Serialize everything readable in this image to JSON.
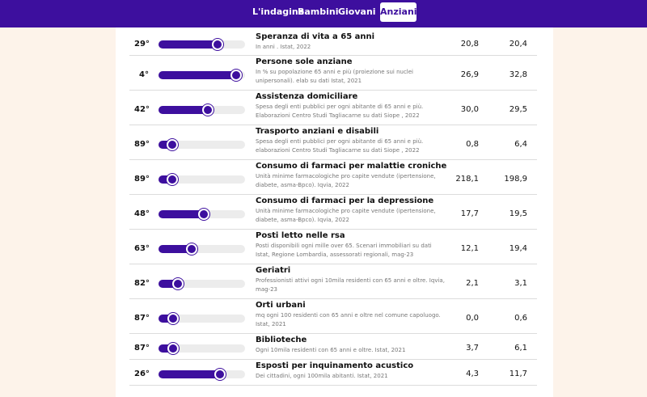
{
  "nav": {
    "tabs": [
      {
        "label": "L'indagine",
        "active": false
      },
      {
        "label": "Bambini",
        "active": false
      },
      {
        "label": "Giovani",
        "active": false
      },
      {
        "label": "Anziani",
        "active": true
      }
    ]
  },
  "colors": {
    "accent": "#3d0f9e",
    "background": "#fdf3ea",
    "track": "#ececec"
  },
  "rows": [
    {
      "rank": "29°",
      "fill": 0.69,
      "title": "Speranza di vita a 65 anni",
      "desc": "In anni . Istat, 2022",
      "v1": "20,8",
      "v2": "20,4"
    },
    {
      "rank": "4°",
      "fill": 0.91,
      "title": "Persone sole anziane",
      "desc": "In % su popolazione 65 anni e più (proiezione sui nuclei unipersonali). elab su dati Istat, 2021",
      "v1": "26,9",
      "v2": "32,8"
    },
    {
      "rank": "42°",
      "fill": 0.58,
      "title": "Assistenza domiciliare",
      "desc": "Spesa degli enti pubblici per ogni abitante di 65 anni e più. Elaborazioni Centro Studi Tagliacarne su dati Siope , 2022",
      "v1": "30,0",
      "v2": "29,5"
    },
    {
      "rank": "89°",
      "fill": 0.17,
      "title": "Trasporto anziani e disabili",
      "desc": "Spesa degli enti pubblici per ogni abitante di 65 anni e più. elaborazioni Centro Studi Tagliacarne su dati Siope , 2022",
      "v1": "0,8",
      "v2": "6,4"
    },
    {
      "rank": "89°",
      "fill": 0.17,
      "title": "Consumo di farmaci per malattie croniche",
      "desc": "Unità minime farmacologiche pro capite vendute (ipertensione, diabete, asma-Bpco). Iqvia, 2022",
      "v1": "218,1",
      "v2": "198,9"
    },
    {
      "rank": "48°",
      "fill": 0.53,
      "title": "Consumo di farmaci per la depressione",
      "desc": "Unità minime farmacologiche pro capite vendute (ipertensione, diabete, asma-Bpco). Iqvia, 2022",
      "v1": "17,7",
      "v2": "19,5"
    },
    {
      "rank": "63°",
      "fill": 0.39,
      "title": "Posti letto nelle rsa",
      "desc": "Posti disponibili ogni mille over 65. Scenari immobiliari su dati Istat, Regione Lombardia, assessorati regionali, mag-23",
      "v1": "12,1",
      "v2": "19,4"
    },
    {
      "rank": "82°",
      "fill": 0.23,
      "title": "Geriatri",
      "desc": "Professionisti attivi ogni 10mila residenti con 65 anni e oltre. Iqvia, mag-23",
      "v1": "2,1",
      "v2": "3,1"
    },
    {
      "rank": "87°",
      "fill": 0.18,
      "title": "Orti urbani",
      "desc": "mq ogni 100 residenti con 65 anni e oltre nel comune capoluogo. Istat, 2021",
      "v1": "0,0",
      "v2": "0,6"
    },
    {
      "rank": "87°",
      "fill": 0.18,
      "title": "Biblioteche",
      "desc": "Ogni 10mila residenti con 65 anni e oltre. Istat, 2021",
      "v1": "3,7",
      "v2": "6,1"
    },
    {
      "rank": "26°",
      "fill": 0.72,
      "title": "Esposti per inquinamento acustico",
      "desc": "Dei cittadini, ogni 100mila abitanti. Istat, 2021",
      "v1": "4,3",
      "v2": "11,7"
    }
  ]
}
